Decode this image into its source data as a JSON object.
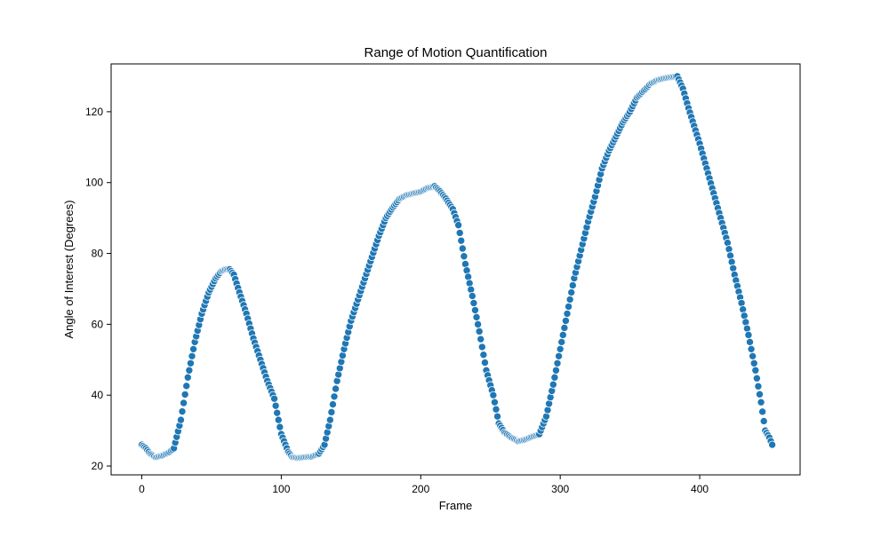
{
  "chart_data": {
    "type": "scatter",
    "title": "Range of Motion Quantification",
    "xlabel": "Frame",
    "ylabel": "Angle of Interest (Degrees)",
    "xlim": [
      -22,
      472
    ],
    "ylim": [
      17.5,
      133.5
    ],
    "xticks": [
      0,
      100,
      200,
      300,
      400
    ],
    "yticks": [
      20,
      40,
      60,
      80,
      100,
      120
    ],
    "xtick_labels": [
      "0",
      "100",
      "200",
      "300",
      "400"
    ],
    "ytick_labels": [
      "20",
      "40",
      "60",
      "80",
      "100",
      "120"
    ],
    "grid": false,
    "marker_color": "#1f77b4",
    "marker_edge_color": "#ffffff",
    "control_points": [
      [
        0,
        26
      ],
      [
        3,
        25
      ],
      [
        6,
        23.5
      ],
      [
        10,
        22.5
      ],
      [
        15,
        23
      ],
      [
        20,
        24
      ],
      [
        23,
        25
      ],
      [
        28,
        33
      ],
      [
        33,
        45
      ],
      [
        38,
        55
      ],
      [
        43,
        63
      ],
      [
        48,
        69
      ],
      [
        53,
        73
      ],
      [
        57,
        75
      ],
      [
        60,
        75.5
      ],
      [
        63,
        75.5
      ],
      [
        66,
        74
      ],
      [
        70,
        69
      ],
      [
        75,
        63
      ],
      [
        80,
        56
      ],
      [
        85,
        50
      ],
      [
        90,
        44
      ],
      [
        95,
        39
      ],
      [
        100,
        29
      ],
      [
        105,
        24
      ],
      [
        108,
        22.5
      ],
      [
        112,
        22.3
      ],
      [
        117,
        22.5
      ],
      [
        122,
        22.7
      ],
      [
        127,
        23.5
      ],
      [
        131,
        26
      ],
      [
        135,
        33
      ],
      [
        140,
        44
      ],
      [
        145,
        53
      ],
      [
        150,
        61
      ],
      [
        155,
        67
      ],
      [
        160,
        73
      ],
      [
        165,
        79
      ],
      [
        170,
        85
      ],
      [
        175,
        90
      ],
      [
        180,
        93
      ],
      [
        185,
        95.5
      ],
      [
        190,
        96.5
      ],
      [
        195,
        97
      ],
      [
        200,
        97.5
      ],
      [
        205,
        98.5
      ],
      [
        210,
        99
      ],
      [
        214,
        97.5
      ],
      [
        218,
        95.5
      ],
      [
        223,
        92.5
      ],
      [
        227,
        88
      ],
      [
        232,
        77
      ],
      [
        237,
        68
      ],
      [
        242,
        58
      ],
      [
        247,
        47
      ],
      [
        252,
        40
      ],
      [
        256,
        32
      ],
      [
        260,
        29.5
      ],
      [
        265,
        28
      ],
      [
        270,
        27
      ],
      [
        275,
        27.5
      ],
      [
        280,
        28.3
      ],
      [
        285,
        29
      ],
      [
        290,
        34
      ],
      [
        295,
        43
      ],
      [
        300,
        53
      ],
      [
        305,
        63
      ],
      [
        310,
        73
      ],
      [
        315,
        81
      ],
      [
        320,
        89
      ],
      [
        325,
        96
      ],
      [
        330,
        104
      ],
      [
        335,
        109
      ],
      [
        340,
        113
      ],
      [
        345,
        117
      ],
      [
        350,
        120
      ],
      [
        355,
        124
      ],
      [
        360,
        126
      ],
      [
        365,
        128
      ],
      [
        370,
        129
      ],
      [
        375,
        129.5
      ],
      [
        380,
        129.8
      ],
      [
        384,
        130
      ],
      [
        388,
        126.5
      ],
      [
        392,
        121
      ],
      [
        396,
        116
      ],
      [
        400,
        111
      ],
      [
        405,
        104
      ],
      [
        410,
        97
      ],
      [
        415,
        90
      ],
      [
        420,
        83
      ],
      [
        425,
        74
      ],
      [
        430,
        66
      ],
      [
        435,
        57
      ],
      [
        440,
        47
      ],
      [
        444,
        38
      ],
      [
        447,
        30
      ],
      [
        450,
        28
      ],
      [
        452,
        26
      ]
    ]
  }
}
